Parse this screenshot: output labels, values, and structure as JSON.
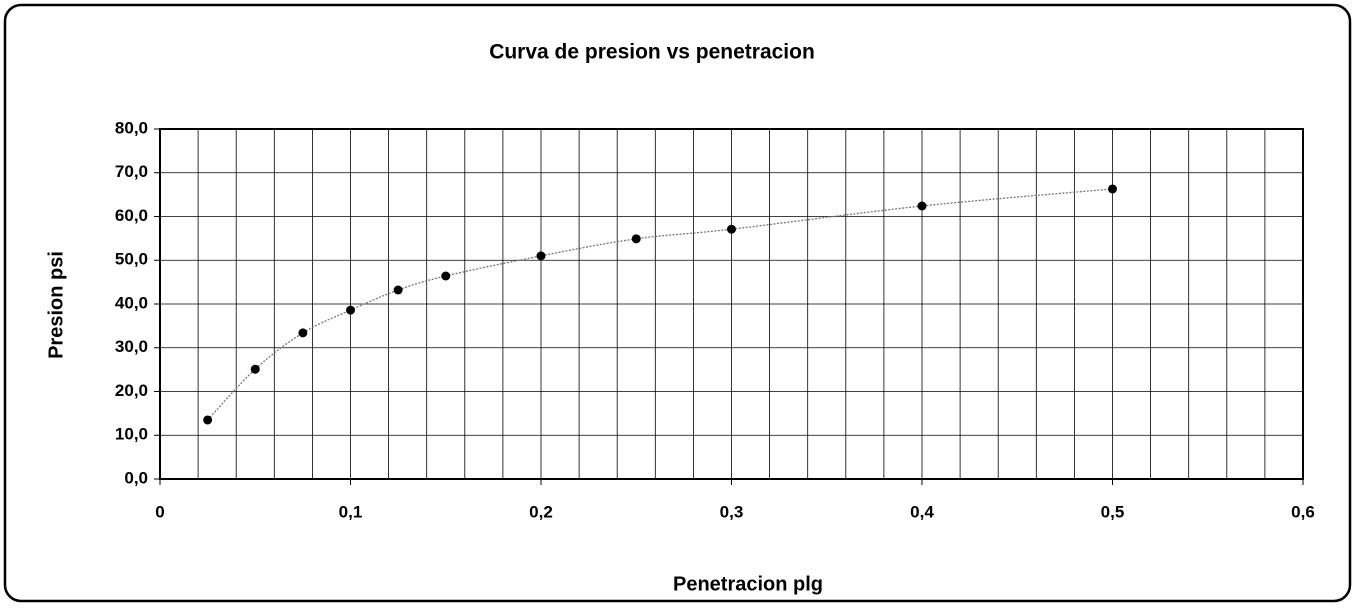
{
  "chart_data": {
    "type": "scatter",
    "title": "Curva de presion vs penetracion",
    "x_label": "Penetracion plg",
    "y_label": "Presion psi",
    "x": [
      0.025,
      0.05,
      0.075,
      0.1,
      0.125,
      0.15,
      0.2,
      0.25,
      0.3,
      0.4,
      0.5
    ],
    "values": [
      13.5,
      25.1,
      33.4,
      38.6,
      43.2,
      46.4,
      51.0,
      54.9,
      57.1,
      62.4,
      66.3
    ],
    "color": "#000000",
    "line_color": "#777777",
    "smooth_line": true,
    "xlim": [
      0,
      0.6
    ],
    "ylim": [
      0,
      80
    ],
    "xticks": [
      0,
      {
        "value": 0.1,
        "label": "0,1"
      },
      {
        "value": 0.2,
        "label": "0,2"
      },
      {
        "value": 0.3,
        "label": "0,3"
      },
      {
        "value": 0.4,
        "label": "0,4"
      },
      {
        "value": 0.5,
        "label": "0,5"
      },
      {
        "value": 0.6,
        "label": "0,6"
      }
    ],
    "x_minor_interval": 0.02,
    "yticks": [
      {
        "value": 0,
        "label": "0,0"
      },
      {
        "value": 10,
        "label": "10,0"
      },
      {
        "value": 20,
        "label": "20,0"
      },
      {
        "value": 30,
        "label": "30,0"
      },
      {
        "value": 40,
        "label": "40,0"
      },
      {
        "value": 50,
        "label": "50,0"
      },
      {
        "value": 60,
        "label": "60,0"
      },
      {
        "value": 70,
        "label": "70,0"
      },
      {
        "value": 80,
        "label": "80,0"
      }
    ],
    "grid": true
  }
}
